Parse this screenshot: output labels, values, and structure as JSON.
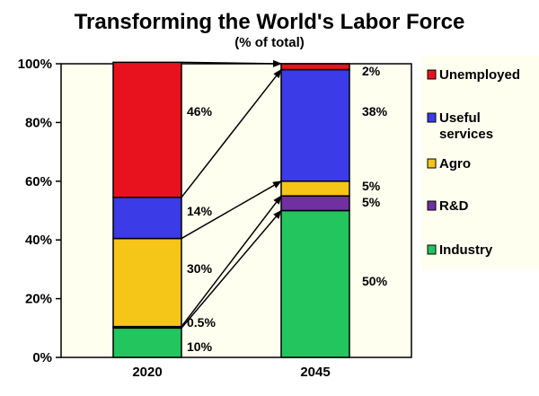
{
  "chart_data": {
    "type": "bar",
    "stacked": true,
    "title": "Transforming the World's Labor Force",
    "subtitle": "(% of total)",
    "categories": [
      "2020",
      "2045"
    ],
    "ylim": [
      0,
      100
    ],
    "yticks": [
      "0%",
      "20%",
      "40%",
      "60%",
      "80%",
      "100%"
    ],
    "grid": false,
    "legend_position": "right",
    "series": [
      {
        "name": "Industry",
        "color": "#22c55e",
        "values": [
          10,
          50
        ],
        "labels": [
          "10%",
          "50%"
        ]
      },
      {
        "name": "R&D",
        "color": "#7030a0",
        "values": [
          0.5,
          5
        ],
        "labels": [
          "0.5%",
          "5%"
        ]
      },
      {
        "name": "Agro",
        "color": "#f5c518",
        "values": [
          30,
          5
        ],
        "labels": [
          "30%",
          "5%"
        ]
      },
      {
        "name": "Useful services",
        "color": "#3b3be8",
        "values": [
          14,
          38
        ],
        "labels": [
          "14%",
          "38%"
        ]
      },
      {
        "name": "Unemployed",
        "color": "#e8121e",
        "values": [
          46,
          2
        ],
        "labels": [
          "46%",
          "2%"
        ]
      }
    ],
    "legend": [
      {
        "name": "Unemployed",
        "lines": [
          "Unemployed"
        ],
        "color": "#e8121e"
      },
      {
        "name": "Useful services",
        "lines": [
          "Useful",
          "services"
        ],
        "color": "#3b3be8"
      },
      {
        "name": "Agro",
        "lines": [
          "Agro"
        ],
        "color": "#f5c518"
      },
      {
        "name": "R&D",
        "lines": [
          "R&D"
        ],
        "color": "#7030a0"
      },
      {
        "name": "Industry",
        "lines": [
          "Industry"
        ],
        "color": "#22c55e"
      }
    ]
  }
}
